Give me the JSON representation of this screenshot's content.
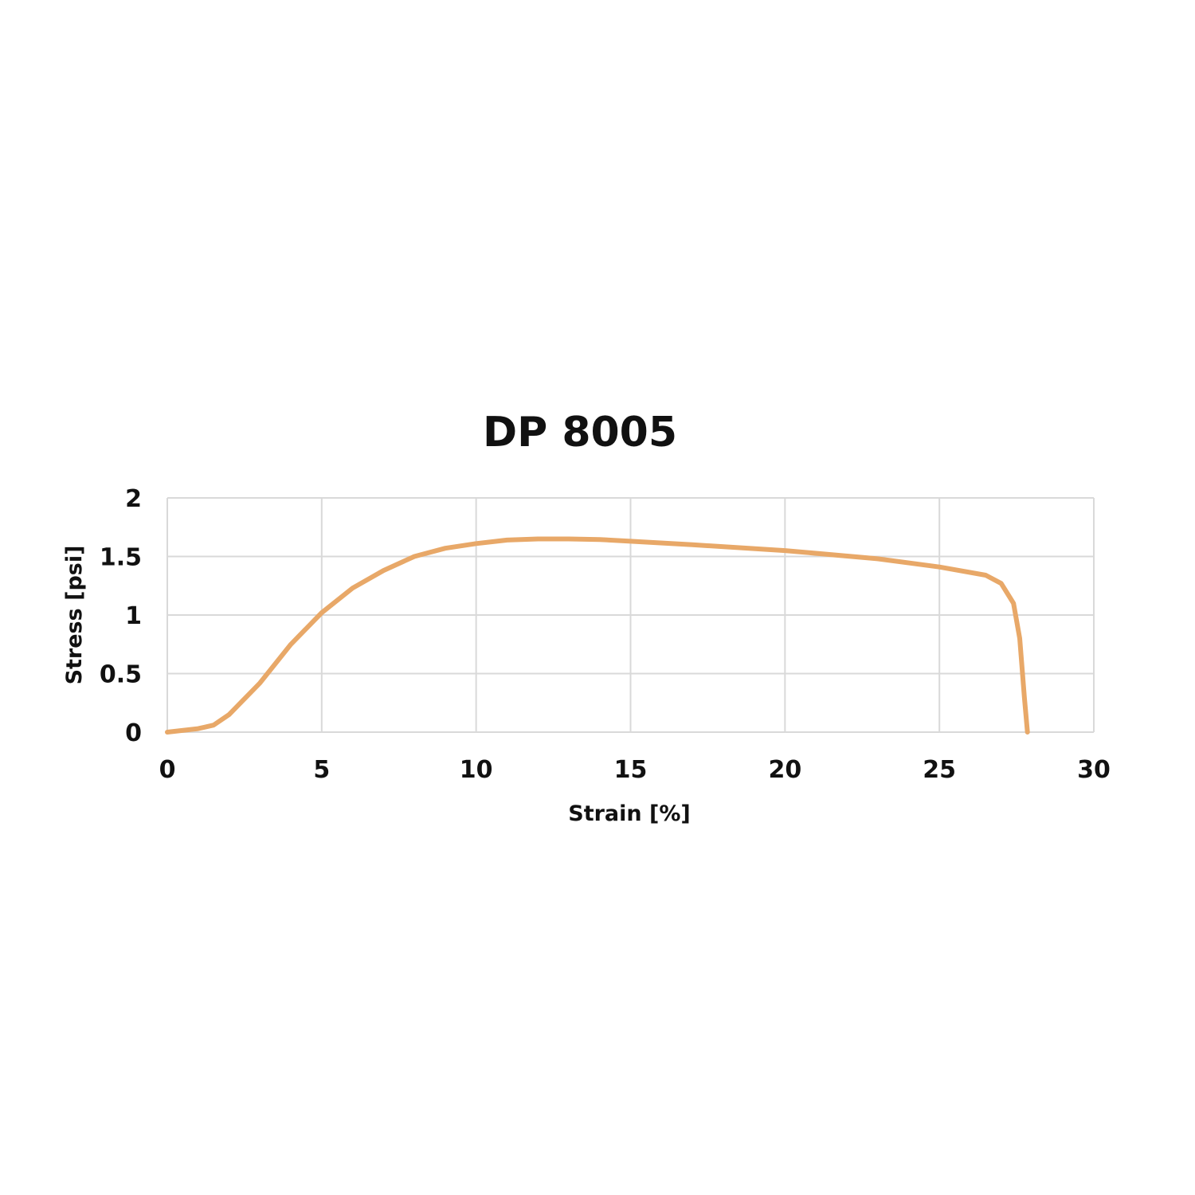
{
  "chart_data": {
    "type": "line",
    "title": "DP 8005",
    "xlabel": "Strain [%]",
    "ylabel": "Stress [psi]",
    "xlim": [
      0,
      30
    ],
    "ylim": [
      0,
      2
    ],
    "xticks": [
      "0",
      "5",
      "10",
      "15",
      "20",
      "25",
      "30"
    ],
    "yticks": [
      "0",
      "0.5",
      "1",
      "1.5",
      "2"
    ],
    "grid": true,
    "line_color": "#E8A868",
    "series": [
      {
        "x": [
          0,
          1,
          1.5,
          2,
          3,
          4,
          5,
          6,
          7,
          8,
          9,
          10,
          11,
          12,
          13,
          14,
          15,
          17,
          20,
          23,
          25,
          26.5,
          27,
          27.4,
          27.6,
          27.75,
          27.85
        ],
        "y": [
          0,
          0.03,
          0.06,
          0.15,
          0.42,
          0.75,
          1.02,
          1.23,
          1.38,
          1.5,
          1.57,
          1.61,
          1.64,
          1.65,
          1.65,
          1.645,
          1.63,
          1.6,
          1.55,
          1.48,
          1.41,
          1.34,
          1.27,
          1.1,
          0.8,
          0.3,
          0
        ]
      }
    ]
  }
}
